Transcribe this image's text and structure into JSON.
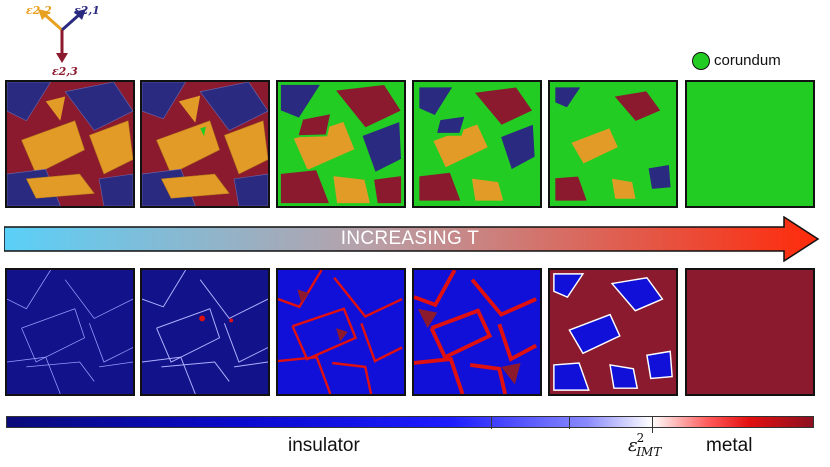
{
  "strain_axes": {
    "e22": {
      "label": "ε2,2",
      "color": "#e8a020"
    },
    "e21": {
      "label": "ε2,1",
      "color": "#2a2a80"
    },
    "e23": {
      "label": "ε2,3",
      "color": "#8c1a2e"
    }
  },
  "legend": {
    "label": "corundum",
    "color": "#22cc22"
  },
  "arrow": {
    "label": "INCREASING T"
  },
  "colorbar": {
    "left_label": "insulator",
    "right_label": "metal",
    "threshold_label": "ε",
    "threshold_sup": "2",
    "threshold_sub": "IMT"
  },
  "colors": {
    "variant_red": "#8c1a2e",
    "variant_blue": "#2a2a80",
    "variant_gold": "#e39b28",
    "corundum_green": "#22cc22",
    "insulator_blue": "#1010e0",
    "metal_red": "#8c1a2e"
  }
}
